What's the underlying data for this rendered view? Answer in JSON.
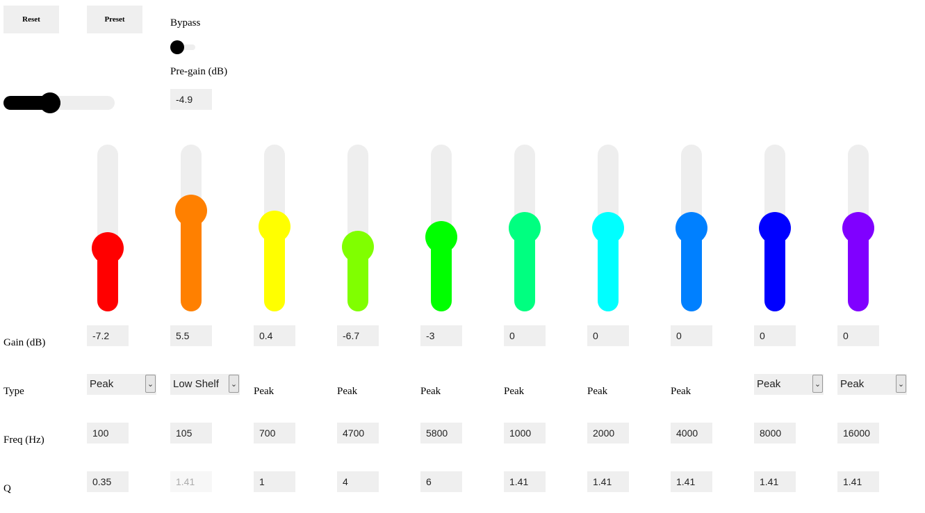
{
  "toolbar": {
    "reset_label": "Reset",
    "preset_label": "Preset"
  },
  "bypass": {
    "label": "Bypass",
    "on": false
  },
  "pregain": {
    "label": "Pre-gain (dB)",
    "value": "-4.9",
    "fraction": 0.4
  },
  "row_labels": {
    "gain": "Gain (dB)",
    "type": "Type",
    "freq": "Freq (Hz)",
    "q": "Q"
  },
  "bands": [
    {
      "color": "#ff0000",
      "gain": "-7.2",
      "type": "Peak",
      "type_is_select": true,
      "freq": "100",
      "q": "0.35",
      "q_disabled": false,
      "level": 0.36
    },
    {
      "color": "#ff8000",
      "gain": "5.5",
      "type": "Low Shelf",
      "type_is_select": true,
      "freq": "105",
      "q": "1.41",
      "q_disabled": true,
      "level": 0.62
    },
    {
      "color": "#ffff00",
      "gain": "0.4",
      "type": "Peak",
      "type_is_select": false,
      "freq": "700",
      "q": "1",
      "q_disabled": false,
      "level": 0.51
    },
    {
      "color": "#80ff00",
      "gain": "-6.7",
      "type": "Peak",
      "type_is_select": false,
      "freq": "4700",
      "q": "4",
      "q_disabled": false,
      "level": 0.37
    },
    {
      "color": "#00ff00",
      "gain": "-3",
      "type": "Peak",
      "type_is_select": false,
      "freq": "5800",
      "q": "6",
      "q_disabled": false,
      "level": 0.44
    },
    {
      "color": "#00ff80",
      "gain": "0",
      "type": "Peak",
      "type_is_select": false,
      "freq": "1000",
      "q": "1.41",
      "q_disabled": false,
      "level": 0.5
    },
    {
      "color": "#00ffff",
      "gain": "0",
      "type": "Peak",
      "type_is_select": false,
      "freq": "2000",
      "q": "1.41",
      "q_disabled": false,
      "level": 0.5
    },
    {
      "color": "#0080ff",
      "gain": "0",
      "type": "Peak",
      "type_is_select": false,
      "freq": "4000",
      "q": "1.41",
      "q_disabled": false,
      "level": 0.5
    },
    {
      "color": "#0000ff",
      "gain": "0",
      "type": "Peak",
      "type_is_select": true,
      "freq": "8000",
      "q": "1.41",
      "q_disabled": false,
      "level": 0.5
    },
    {
      "color": "#8000ff",
      "gain": "0",
      "type": "Peak",
      "type_is_select": true,
      "freq": "16000",
      "q": "1.41",
      "q_disabled": false,
      "level": 0.5
    }
  ]
}
